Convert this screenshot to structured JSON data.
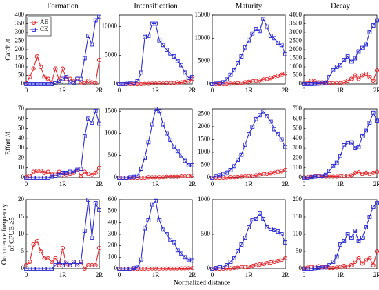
{
  "xlabel": "Normalized distance",
  "chart_data": [
    {
      "type": "line",
      "title": "Formation",
      "ylabel": [
        "Catch /t"
      ],
      "legend": "upper left",
      "x": [
        0,
        0.1,
        0.2,
        0.3,
        0.4,
        0.5,
        0.6,
        0.7,
        0.8,
        0.9,
        1,
        1.1,
        1.2,
        1.3,
        1.4,
        1.5,
        1.6,
        1.7,
        1.8,
        1.9,
        2
      ],
      "xlim": [
        0,
        2
      ],
      "xticks": [
        0,
        {
          "value": 1,
          "label": "1R"
        },
        {
          "value": 2,
          "label": "2R"
        }
      ],
      "ylim": [
        0,
        400
      ],
      "yticks": [
        0,
        50,
        100,
        150,
        200,
        250,
        300,
        350,
        400
      ],
      "series": [
        {
          "name": "AE",
          "color": "#e8262b",
          "marker": "circle",
          "values": [
            5,
            40,
            90,
            160,
            100,
            40,
            30,
            10,
            90,
            20,
            90,
            30,
            30,
            15,
            30,
            10,
            5,
            20,
            10,
            5,
            140
          ]
        },
        {
          "name": "CE",
          "color": "#2b2bd6",
          "marker": "square",
          "values": [
            0,
            0,
            0,
            0,
            0,
            0,
            0,
            0,
            5,
            20,
            30,
            40,
            10,
            5,
            30,
            30,
            150,
            280,
            230,
            370,
            390
          ]
        }
      ]
    },
    {
      "type": "line",
      "title": "Intensification",
      "x": [
        0,
        0.1,
        0.2,
        0.3,
        0.4,
        0.5,
        0.6,
        0.7,
        0.8,
        0.9,
        1,
        1.1,
        1.2,
        1.3,
        1.4,
        1.5,
        1.6,
        1.7,
        1.8,
        1.9,
        2
      ],
      "xlim": [
        0,
        2
      ],
      "xticks": [
        0,
        {
          "value": 1,
          "label": "1R"
        },
        {
          "value": 2,
          "label": "2R"
        }
      ],
      "ylim": [
        0,
        12000
      ],
      "yticks": [
        0,
        5000,
        10000
      ],
      "series": [
        {
          "color": "#e8262b",
          "marker": "circle",
          "values": [
            0,
            0,
            0,
            0,
            0,
            0,
            0,
            50,
            50,
            100,
            100,
            100,
            100,
            150,
            200,
            200,
            300,
            300,
            400,
            500,
            900
          ]
        },
        {
          "color": "#2b2bd6",
          "marker": "square",
          "values": [
            0,
            0,
            50,
            100,
            200,
            500,
            2000,
            8200,
            8400,
            10500,
            10500,
            7600,
            6800,
            6000,
            5300,
            4800,
            4000,
            3300,
            2000,
            1100,
            1200
          ]
        }
      ]
    },
    {
      "type": "line",
      "title": "Maturity",
      "x": [
        0,
        0.1,
        0.2,
        0.3,
        0.4,
        0.5,
        0.6,
        0.7,
        0.8,
        0.9,
        1,
        1.1,
        1.2,
        1.3,
        1.4,
        1.5,
        1.6,
        1.7,
        1.8,
        1.9,
        2
      ],
      "xlim": [
        0,
        2
      ],
      "xticks": [
        0,
        {
          "value": 1,
          "label": "1R"
        },
        {
          "value": 2,
          "label": "2R"
        }
      ],
      "ylim": [
        0,
        15000
      ],
      "yticks": [
        0,
        5000,
        10000,
        15000
      ],
      "series": [
        {
          "color": "#e8262b",
          "marker": "circle",
          "values": [
            0,
            0,
            0,
            0,
            0,
            100,
            100,
            200,
            300,
            400,
            500,
            600,
            700,
            800,
            1000,
            1100,
            1300,
            1500,
            1800,
            2000,
            2300
          ]
        },
        {
          "color": "#2b2bd6",
          "marker": "square",
          "values": [
            0,
            100,
            200,
            400,
            1000,
            2000,
            3000,
            4500,
            6000,
            8000,
            9500,
            11000,
            12000,
            11500,
            14200,
            12500,
            10500,
            10000,
            9000,
            8500,
            6500
          ]
        }
      ]
    },
    {
      "type": "line",
      "title": "Decay",
      "x": [
        0,
        0.1,
        0.2,
        0.3,
        0.4,
        0.5,
        0.6,
        0.7,
        0.8,
        0.9,
        1,
        1.1,
        1.2,
        1.3,
        1.4,
        1.5,
        1.6,
        1.7,
        1.8,
        1.9,
        2
      ],
      "xlim": [
        0,
        2
      ],
      "xticks": [
        0,
        {
          "value": 1,
          "label": "1R"
        },
        {
          "value": 2,
          "label": "2R"
        }
      ],
      "ylim": [
        0,
        4000
      ],
      "yticks": [
        0,
        500,
        1000,
        1500,
        2000,
        2500,
        3000,
        3500,
        4000
      ],
      "series": [
        {
          "color": "#e8262b",
          "marker": "circle",
          "values": [
            50,
            50,
            200,
            150,
            100,
            100,
            100,
            50,
            50,
            50,
            50,
            100,
            200,
            300,
            500,
            300,
            500,
            600,
            400,
            200,
            800
          ]
        },
        {
          "color": "#2b2bd6",
          "marker": "square",
          "values": [
            0,
            0,
            0,
            10,
            20,
            30,
            50,
            400,
            800,
            1000,
            1100,
            1400,
            1600,
            1300,
            1500,
            1900,
            2100,
            2300,
            3000,
            3400,
            3700
          ]
        }
      ]
    },
    {
      "type": "line",
      "ylabel": [
        "Effort /d"
      ],
      "x": [
        0,
        0.1,
        0.2,
        0.3,
        0.4,
        0.5,
        0.6,
        0.7,
        0.8,
        0.9,
        1,
        1.1,
        1.2,
        1.3,
        1.4,
        1.5,
        1.6,
        1.7,
        1.8,
        1.9,
        2
      ],
      "xlim": [
        0,
        2
      ],
      "xticks": [
        0,
        {
          "value": 1,
          "label": "1R"
        },
        {
          "value": 2,
          "label": "2R"
        }
      ],
      "ylim": [
        0,
        70
      ],
      "yticks": [
        0,
        10,
        20,
        30,
        40,
        50,
        60,
        70
      ],
      "series": [
        {
          "color": "#e8262b",
          "marker": "circle",
          "values": [
            1,
            2,
            6,
            7,
            7,
            5,
            6,
            4,
            4,
            6,
            3,
            3,
            4,
            5,
            8,
            2,
            6,
            4,
            3,
            5,
            10
          ]
        },
        {
          "color": "#2b2bd6",
          "marker": "square",
          "values": [
            0,
            0,
            0,
            0,
            0,
            0,
            0,
            1,
            2,
            3,
            5,
            5,
            6,
            7,
            8,
            9,
            42,
            60,
            56,
            68,
            55
          ]
        }
      ]
    },
    {
      "type": "line",
      "x": [
        0,
        0.1,
        0.2,
        0.3,
        0.4,
        0.5,
        0.6,
        0.7,
        0.8,
        0.9,
        1,
        1.1,
        1.2,
        1.3,
        1.4,
        1.5,
        1.6,
        1.7,
        1.8,
        1.9,
        2
      ],
      "xlim": [
        0,
        2
      ],
      "xticks": [
        0,
        {
          "value": 1,
          "label": "1R"
        },
        {
          "value": 2,
          "label": "2R"
        }
      ],
      "ylim": [
        0,
        1550
      ],
      "yticks": [
        0,
        500,
        1000,
        1500
      ],
      "series": [
        {
          "color": "#e8262b",
          "marker": "circle",
          "values": [
            0,
            0,
            0,
            0,
            0,
            0,
            0,
            0,
            10,
            10,
            10,
            10,
            10,
            20,
            20,
            20,
            20,
            30,
            30,
            40,
            50
          ]
        },
        {
          "color": "#2b2bd6",
          "marker": "square",
          "values": [
            0,
            0,
            0,
            10,
            20,
            50,
            200,
            450,
            800,
            1200,
            1550,
            1500,
            1200,
            1000,
            850,
            700,
            600,
            500,
            380,
            280,
            280
          ]
        }
      ]
    },
    {
      "type": "line",
      "x": [
        0,
        0.1,
        0.2,
        0.3,
        0.4,
        0.5,
        0.6,
        0.7,
        0.8,
        0.9,
        1,
        1.1,
        1.2,
        1.3,
        1.4,
        1.5,
        1.6,
        1.7,
        1.8,
        1.9,
        2
      ],
      "xlim": [
        0,
        2
      ],
      "xticks": [
        0,
        {
          "value": 1,
          "label": "1R"
        },
        {
          "value": 2,
          "label": "2R"
        }
      ],
      "ylim": [
        0,
        2700
      ],
      "yticks": [
        0,
        500,
        1000,
        1500,
        2000,
        2500
      ],
      "series": [
        {
          "color": "#e8262b",
          "marker": "circle",
          "values": [
            0,
            0,
            0,
            0,
            10,
            20,
            20,
            30,
            40,
            50,
            60,
            80,
            100,
            120,
            140,
            160,
            180,
            200,
            230,
            260,
            300
          ]
        },
        {
          "color": "#2b2bd6",
          "marker": "square",
          "values": [
            0,
            50,
            100,
            150,
            200,
            300,
            450,
            700,
            900,
            1300,
            1700,
            2000,
            2300,
            2450,
            2600,
            2400,
            2200,
            1900,
            1700,
            1500,
            1200
          ]
        }
      ]
    },
    {
      "type": "line",
      "x": [
        0,
        0.1,
        0.2,
        0.3,
        0.4,
        0.5,
        0.6,
        0.7,
        0.8,
        0.9,
        1,
        1.1,
        1.2,
        1.3,
        1.4,
        1.5,
        1.6,
        1.7,
        1.8,
        1.9,
        2
      ],
      "xlim": [
        0,
        2
      ],
      "xticks": [
        0,
        {
          "value": 1,
          "label": "1R"
        },
        {
          "value": 2,
          "label": "2R"
        }
      ],
      "ylim": [
        0,
        700
      ],
      "yticks": [
        0,
        100,
        200,
        300,
        400,
        500,
        600,
        700
      ],
      "series": [
        {
          "color": "#e8262b",
          "marker": "circle",
          "values": [
            5,
            5,
            10,
            15,
            15,
            10,
            10,
            10,
            10,
            10,
            15,
            20,
            20,
            25,
            50,
            55,
            40,
            50,
            40,
            50,
            60
          ]
        },
        {
          "color": "#2b2bd6",
          "marker": "square",
          "values": [
            0,
            0,
            5,
            10,
            20,
            20,
            30,
            70,
            120,
            150,
            220,
            330,
            350,
            360,
            300,
            310,
            420,
            480,
            560,
            660,
            580
          ]
        }
      ]
    },
    {
      "type": "line",
      "ylabel": [
        "Occurrence frequency",
        "of CPUE ≥5"
      ],
      "x": [
        0,
        0.1,
        0.2,
        0.3,
        0.4,
        0.5,
        0.6,
        0.7,
        0.8,
        0.9,
        1,
        1.1,
        1.2,
        1.3,
        1.4,
        1.5,
        1.6,
        1.7,
        1.8,
        1.9,
        2
      ],
      "xlim": [
        0,
        2
      ],
      "xticks": [
        0,
        {
          "value": 1,
          "label": "1R"
        },
        {
          "value": 2,
          "label": "2R"
        }
      ],
      "ylim": [
        0,
        20
      ],
      "yticks": [
        0,
        5,
        10,
        15,
        20
      ],
      "series": [
        {
          "color": "#e8262b",
          "marker": "circle",
          "values": [
            1,
            2,
            7,
            8,
            5,
            3,
            3,
            2,
            3,
            1,
            6,
            1,
            1,
            2,
            1,
            2,
            0,
            1,
            1,
            1,
            6
          ]
        },
        {
          "color": "#2b2bd6",
          "marker": "square",
          "values": [
            0,
            0,
            0,
            0,
            0,
            0,
            0,
            0,
            1,
            2,
            1,
            2,
            1,
            2,
            1,
            2,
            11,
            20,
            9,
            19,
            17
          ]
        }
      ]
    },
    {
      "type": "line",
      "x": [
        0,
        0.1,
        0.2,
        0.3,
        0.4,
        0.5,
        0.6,
        0.7,
        0.8,
        0.9,
        1,
        1.1,
        1.2,
        1.3,
        1.4,
        1.5,
        1.6,
        1.7,
        1.8,
        1.9,
        2
      ],
      "xlim": [
        0,
        2
      ],
      "xticks": [
        0,
        {
          "value": 1,
          "label": "1R"
        },
        {
          "value": 2,
          "label": "2R"
        }
      ],
      "ylim": [
        0,
        600
      ],
      "yticks": [
        0,
        100,
        200,
        300,
        400,
        500,
        600
      ],
      "series": [
        {
          "color": "#e8262b",
          "marker": "circle",
          "values": [
            0,
            0,
            0,
            0,
            0,
            0,
            0,
            0,
            1,
            1,
            1,
            1,
            1,
            2,
            2,
            2,
            2,
            3,
            3,
            4,
            5
          ]
        },
        {
          "color": "#2b2bd6",
          "marker": "square",
          "values": [
            0,
            0,
            0,
            0,
            5,
            10,
            80,
            350,
            420,
            560,
            590,
            420,
            340,
            300,
            250,
            230,
            160,
            130,
            100,
            80,
            70
          ]
        }
      ]
    },
    {
      "type": "line",
      "x": [
        0,
        0.1,
        0.2,
        0.3,
        0.4,
        0.5,
        0.6,
        0.7,
        0.8,
        0.9,
        1,
        1.1,
        1.2,
        1.3,
        1.4,
        1.5,
        1.6,
        1.7,
        1.8,
        1.9,
        2
      ],
      "xlim": [
        0,
        2
      ],
      "xticks": [
        0,
        {
          "value": 1,
          "label": "1R"
        },
        {
          "value": 2,
          "label": "2R"
        }
      ],
      "ylim": [
        0,
        1000
      ],
      "yticks": [
        0,
        500,
        1000
      ],
      "series": [
        {
          "color": "#e8262b",
          "marker": "circle",
          "values": [
            0,
            0,
            0,
            0,
            5,
            5,
            10,
            15,
            20,
            25,
            30,
            40,
            50,
            60,
            70,
            80,
            90,
            100,
            110,
            130,
            150
          ]
        },
        {
          "color": "#2b2bd6",
          "marker": "square",
          "values": [
            0,
            10,
            20,
            30,
            50,
            100,
            150,
            250,
            350,
            450,
            600,
            700,
            720,
            800,
            720,
            600,
            580,
            560,
            540,
            500,
            380
          ]
        }
      ]
    },
    {
      "type": "line",
      "x": [
        0,
        0.1,
        0.2,
        0.3,
        0.4,
        0.5,
        0.6,
        0.7,
        0.8,
        0.9,
        1,
        1.1,
        1.2,
        1.3,
        1.4,
        1.5,
        1.6,
        1.7,
        1.8,
        1.9,
        2
      ],
      "xlim": [
        0,
        2
      ],
      "xticks": [
        0,
        {
          "value": 1,
          "label": "1R"
        },
        {
          "value": 2,
          "label": "2R"
        }
      ],
      "ylim": [
        0,
        200
      ],
      "yticks": [
        0,
        50,
        100,
        150,
        200
      ],
      "series": [
        {
          "color": "#e8262b",
          "marker": "circle",
          "values": [
            2,
            3,
            5,
            6,
            7,
            5,
            3,
            2,
            2,
            3,
            5,
            8,
            5,
            10,
            20,
            30,
            15,
            25,
            30,
            10,
            50
          ]
        },
        {
          "color": "#2b2bd6",
          "marker": "square",
          "values": [
            0,
            0,
            0,
            1,
            2,
            3,
            5,
            10,
            20,
            35,
            70,
            80,
            100,
            90,
            110,
            80,
            90,
            120,
            150,
            180,
            190
          ]
        }
      ]
    }
  ]
}
